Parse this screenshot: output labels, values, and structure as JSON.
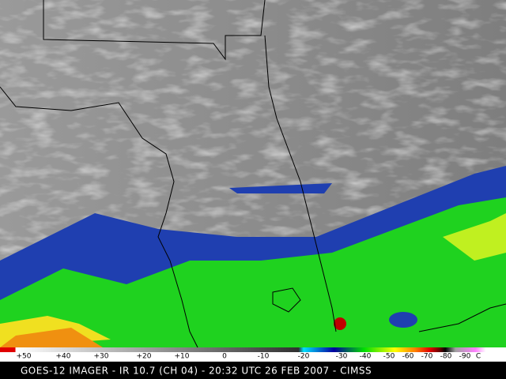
{
  "image": {
    "caption": "GOES-12 IMAGER - IR 10.7 (CH 04) - 20:32 UTC 26 FEB 2007 - CIMSS"
  },
  "colorbar": {
    "labels": [
      "+50",
      "+40",
      "+30",
      "+20",
      "+10",
      "0",
      "-10",
      "-20",
      "-30",
      "-40",
      "-50",
      "-60",
      "-70",
      "-80",
      "-90",
      "C"
    ]
  }
}
